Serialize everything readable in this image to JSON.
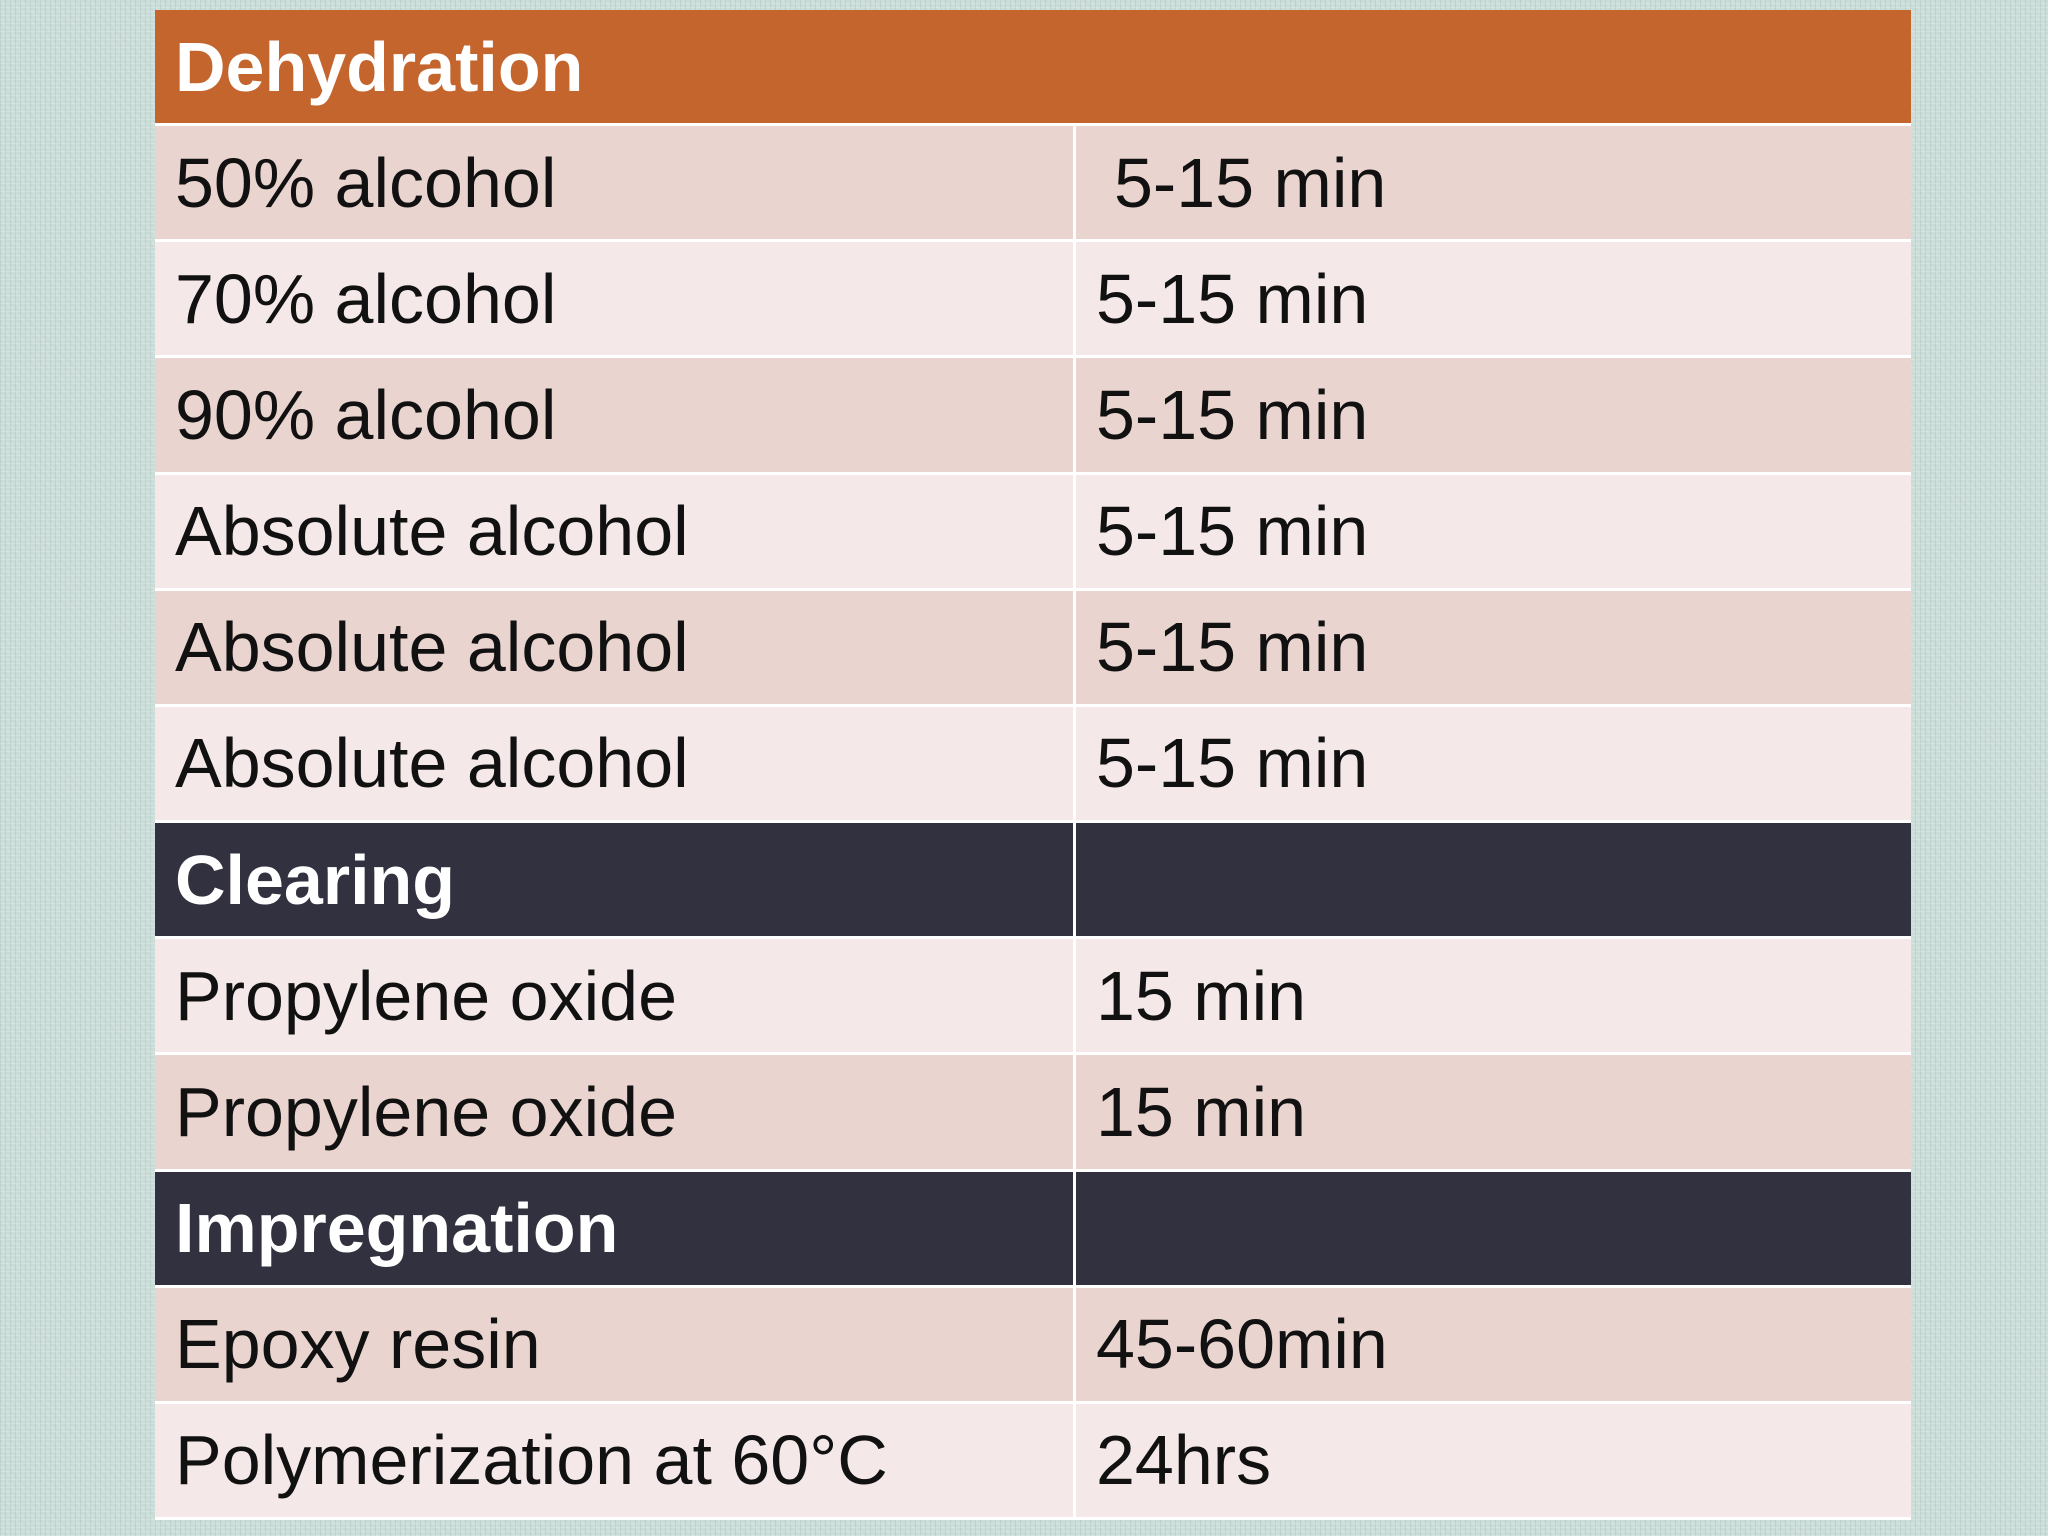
{
  "table": {
    "header": "Dehydration",
    "rows": [
      {
        "step": "50% alcohol",
        "time": "5-15 min"
      },
      {
        "step": "70% alcohol",
        "time": "5-15 min"
      },
      {
        "step": "90% alcohol",
        "time": "5-15 min"
      },
      {
        "step": "Absolute alcohol",
        "time": "5-15 min"
      },
      {
        "step": "Absolute alcohol",
        "time": "5-15 min"
      },
      {
        "step": "Absolute alcohol",
        "time": "5-15 min"
      }
    ],
    "clearing": {
      "title": "Clearing",
      "rows": [
        {
          "step": "Propylene oxide",
          "time": "15 min"
        },
        {
          "step": "Propylene oxide",
          "time": "15 min"
        }
      ]
    },
    "impregnation": {
      "title": "Impregnation",
      "rows": [
        {
          "step": "Epoxy resin",
          "time": "45-60min"
        },
        {
          "step": "Polymerization at 60°C",
          "time": "24hrs"
        }
      ]
    }
  },
  "colors": {
    "header_bg": "#c4652e",
    "section_bg": "#31313f",
    "row_dark": "#e9d4cf",
    "row_light": "#f4e9e8"
  }
}
